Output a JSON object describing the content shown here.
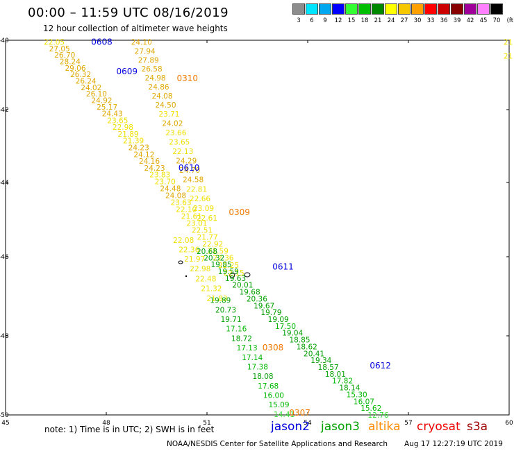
{
  "header": {
    "title": "00:00 – 11:59 UTC 08/16/2019",
    "subtitle": "12 hour collection of altimeter wave heights"
  },
  "color_scale": {
    "labels": [
      "3",
      "6",
      "9",
      "12",
      "15",
      "18",
      "21",
      "24",
      "27",
      "30",
      "33",
      "36",
      "39",
      "42",
      "45",
      "70"
    ],
    "unit": "(ft)",
    "colors": [
      "#8c8c8c",
      "#00e5ff",
      "#00a8f0",
      "#0000ff",
      "#33ff33",
      "#00bf00",
      "#008800",
      "#ffff00",
      "#f5c800",
      "#ffa000",
      "#ff0000",
      "#cc0000",
      "#880000",
      "#a0009a",
      "#ff80ff",
      "#000000"
    ]
  },
  "axes": {
    "x_ticks": [
      "45",
      "48",
      "51",
      "54",
      "57",
      "60"
    ],
    "y_ticks": [
      "-40",
      "-42",
      "-44",
      "-46",
      "-48",
      "-50"
    ]
  },
  "tracks": [
    {
      "id": "jason2-0608",
      "satellite": "jason2",
      "start": {
        "lon": 46.45,
        "lat": -40.05
      },
      "end": {
        "lon": 51.8,
        "lat": -46.4
      },
      "values": [
        "22.05",
        "27.05",
        "26.70",
        "28.24",
        "29.06",
        "26.32",
        "26.24",
        "24.02",
        "26.10",
        "24.92",
        "25.17",
        "24.43",
        "23.65",
        "22.98",
        "21.89",
        "21.39",
        "24.23",
        "24.12",
        "24.16",
        "24.23",
        "23.83",
        "23.70",
        "24.48",
        "24.08",
        "23.63",
        "22.10",
        "21.61",
        "23.01",
        "22.51",
        "21.77",
        "22.92",
        "21.59",
        "22.36",
        "22.25",
        "22.15"
      ]
    },
    {
      "id": "altika-0310",
      "satellite": "altika",
      "start": {
        "lon": 49.05,
        "lat": -40.05
      },
      "end": {
        "lon": 51.0,
        "lat": -44.95
      },
      "values": [
        "24.10",
        "27.94",
        "27.89",
        "26.58",
        "24.98",
        "24.86",
        "24.08",
        "24.50",
        "23.71",
        "24.02",
        "23.66",
        "23.65",
        "22.13",
        "24.29",
        "24.70",
        "24.58",
        "22.81",
        "22.66",
        "23.09",
        "22.61"
      ]
    },
    {
      "id": "altika-0309",
      "satellite": "altika",
      "start": {
        "lon": 50.3,
        "lat": -45.55
      },
      "end": {
        "lon": 51.3,
        "lat": -47.05
      },
      "values": [
        "22.08",
        "22.36",
        "21.97",
        "22.98",
        "22.48",
        "21.32",
        "21.83"
      ]
    },
    {
      "id": "jason3-0611",
      "satellite": "jason3",
      "start": {
        "lon": 51.0,
        "lat": -45.85
      },
      "end": {
        "lon": 56.1,
        "lat": -50.0
      },
      "values": [
        "20.68",
        "20.32",
        "19.85",
        "19.59",
        "19.63",
        "20.01",
        "19.68",
        "20.36",
        "19.67",
        "19.79",
        "19.09",
        "17.50",
        "19.04",
        "18.85",
        "18.62",
        "20.41",
        "19.34",
        "18.57",
        "18.01",
        "17.82",
        "18.14",
        "15.30",
        "16.07",
        "15.62",
        "12.76"
      ]
    },
    {
      "id": "jason3-0308",
      "satellite": "jason3",
      "start": {
        "lon": 51.4,
        "lat": -47.1
      },
      "end": {
        "lon": 53.3,
        "lat": -49.98
      },
      "values": [
        "19.89",
        "20.73",
        "19.71",
        "17.16",
        "18.72",
        "17.13",
        "17.14",
        "17.38",
        "18.08",
        "17.68",
        "16.00",
        "15.09",
        "14.41"
      ]
    },
    {
      "id": "altika-far-east",
      "satellite": "altika",
      "start": {
        "lon": 59.97,
        "lat": -40.05
      },
      "end": {
        "lon": 59.97,
        "lat": -40.45
      },
      "values": [
        "21",
        "21"
      ]
    }
  ],
  "pass_labels": [
    {
      "text": "0608",
      "color": "#0000dd",
      "lon": 47.55,
      "lat": -40.05
    },
    {
      "text": "0609",
      "color": "#0000dd",
      "lon": 48.3,
      "lat": -40.9
    },
    {
      "text": "0310",
      "color": "#f07800",
      "lon": 50.1,
      "lat": -41.1
    },
    {
      "text": "0610",
      "color": "#0000dd",
      "lon": 50.15,
      "lat": -43.6
    },
    {
      "text": "0309",
      "color": "#f07800",
      "lon": 51.65,
      "lat": -44.8
    },
    {
      "text": "0611",
      "color": "#0000dd",
      "lon": 52.95,
      "lat": -46.25
    },
    {
      "text": "0308",
      "color": "#f07800",
      "lon": 52.65,
      "lat": -48.3
    },
    {
      "text": "0612",
      "color": "#0000dd",
      "lon": 55.85,
      "lat": -48.75
    },
    {
      "text": "0307",
      "color": "#f07800",
      "lon": 53.45,
      "lat": -49.95
    }
  ],
  "footer": {
    "note": "note:  1) Time is in UTC;  2) SWH is in feet",
    "legend": [
      {
        "text": "jason2",
        "color": "#0000dd"
      },
      {
        "text": "jason3",
        "color": "#00a000"
      },
      {
        "text": "altika",
        "color": "#ff8c00"
      },
      {
        "text": "cryosat",
        "color": "#ee0000"
      },
      {
        "text": "s3a",
        "color": "#a00000"
      }
    ],
    "credit": "NOAA/NESDIS Center for Satellite Applications and Research",
    "timestamp": "Aug 17 12:27:19 UTC 2019"
  }
}
